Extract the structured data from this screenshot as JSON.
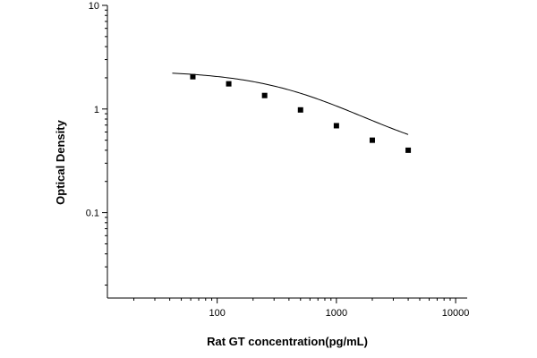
{
  "chart_data": {
    "type": "scatter",
    "title": "",
    "xlabel": "Rat GT concentration(pg/mL)",
    "ylabel": "Optical Density",
    "xscale": "log",
    "yscale": "log",
    "xlim": [
      12,
      12500
    ],
    "ylim": [
      0.015,
      10
    ],
    "grid": false,
    "legend": "none",
    "x_ticks": [
      {
        "value": 100,
        "label": "100"
      },
      {
        "value": 1000,
        "label": "1000"
      },
      {
        "value": 10000,
        "label": "10000"
      }
    ],
    "y_ticks": [
      {
        "value": 0.1,
        "label": "0.1"
      },
      {
        "value": 1,
        "label": "1"
      },
      {
        "value": 10,
        "label": "10"
      }
    ],
    "series": [
      {
        "x": [
          62.5,
          125,
          250,
          500,
          1000,
          2000,
          4000
        ],
        "y": [
          2.05,
          1.75,
          1.35,
          0.98,
          0.69,
          0.5,
          0.4
        ],
        "marker": "square",
        "fit_curve": true
      }
    ]
  }
}
